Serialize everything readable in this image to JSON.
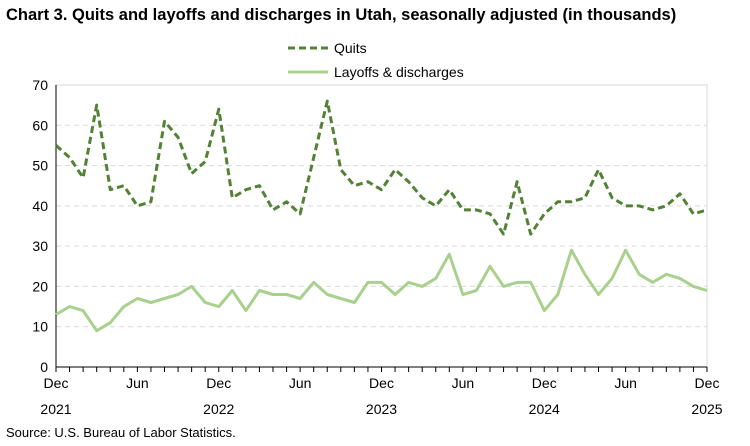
{
  "chart_data": {
    "type": "line",
    "title": "Chart 3. Quits and layoffs and discharges in Utah, seasonally adjusted (in thousands)",
    "source": "Source: U.S. Bureau of Labor Statistics.",
    "xlabel": "",
    "ylabel": "",
    "ylim": [
      0,
      70
    ],
    "yticks": [
      0,
      10,
      20,
      30,
      40,
      50,
      60,
      70
    ],
    "grid": true,
    "legend": "top-center",
    "x_start": "Dec 2021",
    "x_end": "Dec 2025",
    "xtick_labels": [
      {
        "month": "Dec",
        "year": "2021",
        "index": 0
      },
      {
        "month": "Jun",
        "year": "",
        "index": 6
      },
      {
        "month": "Dec",
        "year": "2022",
        "index": 12
      },
      {
        "month": "Jun",
        "year": "",
        "index": 18
      },
      {
        "month": "Dec",
        "year": "2023",
        "index": 24
      },
      {
        "month": "Jun",
        "year": "",
        "index": 30
      },
      {
        "month": "Dec",
        "year": "2024",
        "index": 36
      },
      {
        "month": "Jun",
        "year": "",
        "index": 42
      },
      {
        "month": "Dec",
        "year": "2025",
        "index": 48
      }
    ],
    "series": [
      {
        "name": "Quits",
        "color": "#538135",
        "dash": true,
        "values": [
          55,
          52,
          47,
          65,
          44,
          45,
          40,
          41,
          61,
          57,
          48,
          51,
          64,
          42,
          44,
          45,
          39,
          41,
          38,
          52,
          66,
          49,
          45,
          46,
          44,
          49,
          46,
          42,
          40,
          44,
          39,
          39,
          38,
          33,
          46,
          33,
          38,
          41,
          41,
          42,
          49,
          42,
          40,
          40,
          39,
          40,
          43,
          38,
          39
        ]
      },
      {
        "name": "Layoffs & discharges",
        "color": "#a9d18e",
        "dash": false,
        "values": [
          13,
          15,
          14,
          9,
          11,
          15,
          17,
          16,
          17,
          18,
          20,
          16,
          15,
          19,
          14,
          19,
          18,
          18,
          17,
          21,
          18,
          17,
          16,
          21,
          21,
          18,
          21,
          20,
          22,
          28,
          18,
          19,
          25,
          20,
          21,
          21,
          14,
          18,
          29,
          23,
          18,
          22,
          29,
          23,
          21,
          23,
          22,
          20,
          19
        ]
      }
    ]
  }
}
